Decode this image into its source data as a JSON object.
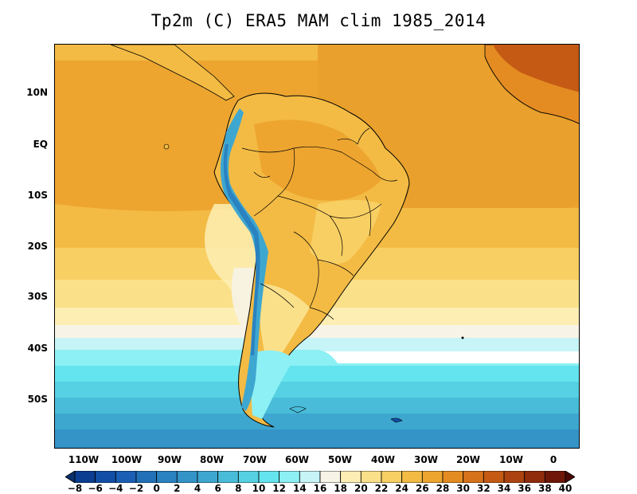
{
  "title": "Tp2m (C) ERA5 MAM clim 1985_2014",
  "map": {
    "variable": "Tp2m",
    "units": "C",
    "lat_ticks": [
      "10N",
      "EQ",
      "10S",
      "20S",
      "30S",
      "40S",
      "50S"
    ],
    "lon_ticks": [
      "110W",
      "100W",
      "90W",
      "80W",
      "70W",
      "60W",
      "50W",
      "40W",
      "30W",
      "20W",
      "10W",
      "0"
    ]
  },
  "colorbar": {
    "labels": [
      "-8",
      "-6",
      "-4",
      "-2",
      "0",
      "2",
      "4",
      "6",
      "8",
      "10",
      "12",
      "14",
      "16",
      "18",
      "20",
      "22",
      "24",
      "26",
      "28",
      "30",
      "32",
      "34",
      "36",
      "38",
      "40"
    ],
    "colors": [
      "#08306b",
      "#0b3d91",
      "#124ea6",
      "#1a5fb4",
      "#2271b8",
      "#2a82c0",
      "#3494c8",
      "#3ea7d0",
      "#49bcd9",
      "#55d1e3",
      "#64e4ee",
      "#8cf0f4",
      "#c6f4f7",
      "#f7f3e6",
      "#fdeeb4",
      "#fbe08a",
      "#f8cf63",
      "#f3bb44",
      "#eda530",
      "#e48c22",
      "#d6721a",
      "#c45a14",
      "#ab420f",
      "#8f2c0c",
      "#6e1709",
      "#4a0807"
    ]
  }
}
